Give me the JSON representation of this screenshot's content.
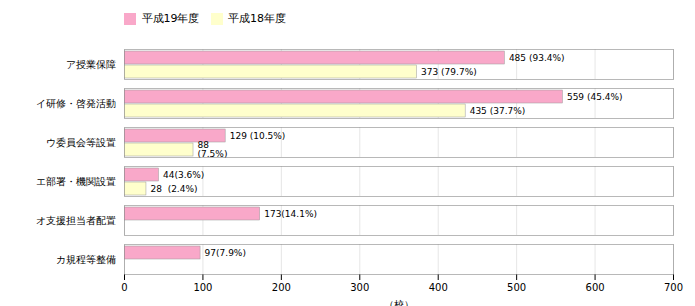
{
  "chart_data": {
    "type": "bar",
    "orientation": "horizontal",
    "categories": [
      "ア授業保障",
      "イ研修・啓発活動",
      "ウ委員会等設置",
      "エ部署・機関設置",
      "オ支援担当者配置",
      "カ規程等整備"
    ],
    "series": [
      {
        "name": "平成19年度",
        "color": "#F9A8C9",
        "values": [
          485,
          559,
          129,
          44,
          173,
          97
        ],
        "value_labels": [
          "485 (93.4%)",
          "559 (45.4%)",
          "129 (10.5%)",
          "44(3.6%)",
          "173(14.1%)",
          "97(7.9%)"
        ]
      },
      {
        "name": "平成18年度",
        "color": "#FFFFCC",
        "values": [
          373,
          435,
          88,
          28,
          0,
          0
        ],
        "value_labels": [
          "373 (79.7%)",
          "435 (37.7%)",
          "88\n(7.5%)",
          "28  (2.4%)",
          null,
          null
        ]
      }
    ],
    "xlabel": "（校）",
    "xlim": [
      0,
      700
    ],
    "xticks": [
      0,
      100,
      200,
      300,
      400,
      500,
      600,
      700
    ],
    "grid": true,
    "legend": "top",
    "data_labels": true
  }
}
